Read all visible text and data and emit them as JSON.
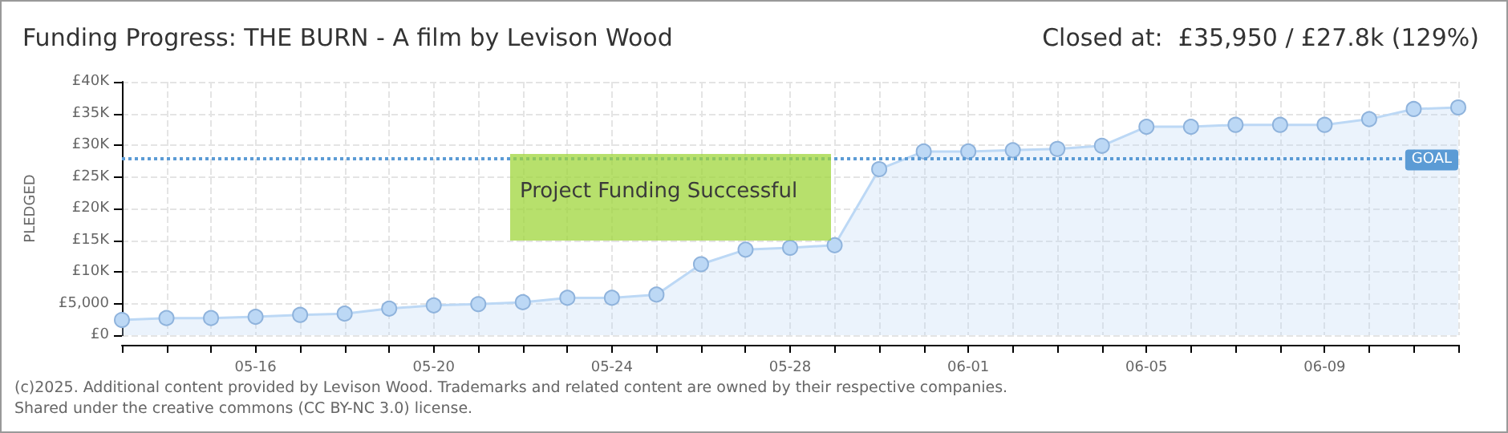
{
  "chart_data": {
    "type": "area",
    "title": "Funding Progress: THE BURN - A film by Levison Wood",
    "subtitle": "Closed at:  £35,950 / £27.8k (129%)",
    "ylabel": "PLEDGED",
    "categories": [
      null,
      null,
      null,
      "05-16",
      null,
      null,
      null,
      "05-20",
      null,
      null,
      null,
      "05-24",
      null,
      null,
      null,
      "05-28",
      null,
      null,
      null,
      "06-01",
      null,
      null,
      null,
      "06-05",
      null,
      null,
      null,
      "06-09",
      null,
      null,
      null
    ],
    "series": [
      {
        "color": "#bcd8f5",
        "values": [
          2400,
          2700,
          2700,
          2900,
          3200,
          3400,
          4200,
          4700,
          4900,
          5200,
          5900,
          5900,
          6400,
          11200,
          13500,
          13800,
          14200,
          26200,
          29000,
          29000,
          29200,
          29400,
          29900,
          32900,
          32900,
          33200,
          33200,
          33200,
          34100,
          35700,
          35950
        ]
      }
    ],
    "ylim": [
      0,
      40000
    ],
    "yticks": [
      {
        "value": 0,
        "label": "£0"
      },
      {
        "value": 5000,
        "label": "£5,000"
      },
      {
        "value": 10000,
        "label": "£10K"
      },
      {
        "value": 15000,
        "label": "£15K"
      },
      {
        "value": 20000,
        "label": "£20K"
      },
      {
        "value": 25000,
        "label": "£25K"
      },
      {
        "value": 30000,
        "label": "£30K"
      },
      {
        "value": 35000,
        "label": "£35K"
      },
      {
        "value": 40000,
        "label": "£40K"
      }
    ],
    "ref_lines": [
      {
        "axis": "y",
        "value": 27800,
        "label": "GOAL",
        "color": "#5b9bd5",
        "line_style": "dotted"
      }
    ],
    "annotations": [
      "Project Funding Successful",
      "(c)2025. Additional content provided by Levison Wood. Trademarks and related content are owned by their respective companies.",
      "Shared under the creative commons (CC BY-NC 3.0) license."
    ],
    "grid": true,
    "marker": "circle",
    "line_style": "solid"
  }
}
